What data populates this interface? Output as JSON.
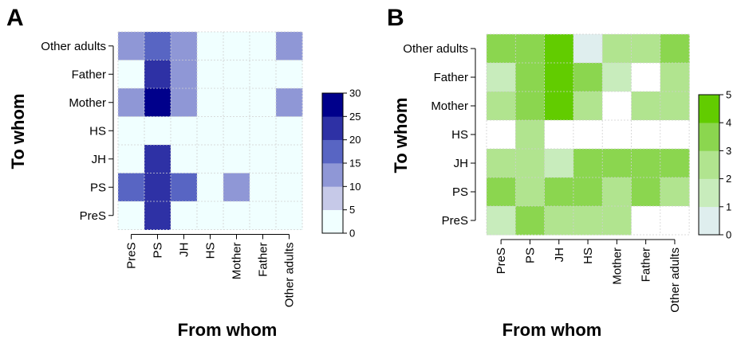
{
  "chart_data": [
    {
      "type": "heatmap",
      "panel_label": "A",
      "xlabel": "From whom",
      "ylabel": "To whom",
      "x_categories": [
        "PreS",
        "PS",
        "JH",
        "HS",
        "Mother",
        "Father",
        "Other adults"
      ],
      "y_categories": [
        "Other adults",
        "Father",
        "Mother",
        "HS",
        "JH",
        "PS",
        "PreS"
      ],
      "values": [
        [
          10,
          15,
          10,
          2,
          2,
          2,
          10
        ],
        [
          2,
          20,
          10,
          2,
          2,
          0,
          2
        ],
        [
          10,
          30,
          10,
          2,
          0,
          2,
          10
        ],
        [
          0,
          2,
          0,
          0,
          0,
          0,
          0
        ],
        [
          2,
          20,
          2,
          2,
          2,
          2,
          2
        ],
        [
          15,
          20,
          15,
          2,
          10,
          2,
          2
        ],
        [
          2,
          20,
          2,
          2,
          2,
          0,
          0
        ]
      ],
      "legend_ticks": [
        0,
        5,
        10,
        15,
        20,
        25,
        30
      ],
      "legend_colors": [
        "#f0ffff",
        "#c6c9e8",
        "#8f97d6",
        "#5865c3",
        "#2e31a5",
        "#00008b"
      ],
      "grid": true
    },
    {
      "type": "heatmap",
      "panel_label": "B",
      "xlabel": "From whom",
      "ylabel": "To whom",
      "x_categories": [
        "PreS",
        "PS",
        "JH",
        "HS",
        "Mother",
        "Father",
        "Other adults"
      ],
      "y_categories": [
        "Other adults",
        "Father",
        "Mother",
        "HS",
        "JH",
        "PS",
        "PreS"
      ],
      "values": [
        [
          3.5,
          3.5,
          4.5,
          0.5,
          2.5,
          2.5,
          3.5
        ],
        [
          1.5,
          3.5,
          4,
          3.5,
          1.5,
          null,
          2.5
        ],
        [
          2.5,
          3.5,
          5,
          2.5,
          null,
          2.5,
          2.5
        ],
        [
          null,
          2.5,
          null,
          null,
          null,
          null,
          null
        ],
        [
          2.5,
          2.5,
          1.5,
          3.5,
          3.5,
          3.5,
          3.5
        ],
        [
          3.5,
          2.5,
          3.5,
          3.5,
          2.5,
          3.5,
          2.5
        ],
        [
          1.5,
          3.5,
          2.5,
          2.5,
          2.5,
          null,
          null
        ]
      ],
      "legend_ticks": [
        0,
        1,
        2,
        3,
        4,
        5
      ],
      "legend_colors": [
        "#dfeeee",
        "#c8ecbc",
        "#b1e48f",
        "#8bd64f",
        "#62cc00"
      ],
      "grid": true
    }
  ]
}
